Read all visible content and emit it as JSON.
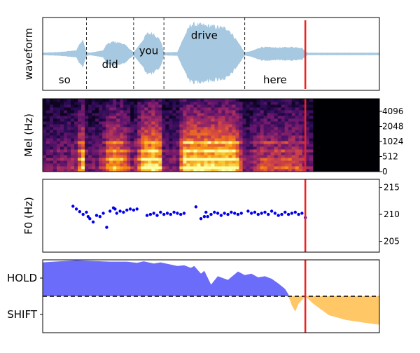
{
  "chart_data": [
    {
      "panel": "waveform",
      "type": "area",
      "ylabel": "waveform",
      "series_color": "#a6c8e0",
      "word_boundary_style": "dashed",
      "words": [
        {
          "text": "so",
          "start": 0.0,
          "end": 0.13,
          "label_y": -0.72
        },
        {
          "text": "did",
          "start": 0.13,
          "end": 0.27,
          "label_y": -0.3
        },
        {
          "text": "you",
          "start": 0.27,
          "end": 0.36,
          "label_y": 0.08
        },
        {
          "text": "drive",
          "start": 0.36,
          "end": 0.6,
          "label_y": 0.5
        },
        {
          "text": "here",
          "start": 0.6,
          "end": 0.78,
          "label_y": -0.72
        }
      ],
      "envelope": {
        "x": [
          0.0,
          0.05,
          0.1,
          0.11,
          0.12,
          0.13,
          0.14,
          0.18,
          0.19,
          0.21,
          0.24,
          0.27,
          0.29,
          0.31,
          0.33,
          0.35,
          0.36,
          0.4,
          0.42,
          0.44,
          0.5,
          0.55,
          0.58,
          0.6,
          0.62,
          0.65,
          0.7,
          0.74,
          0.77,
          0.78,
          0.79,
          1.0
        ],
        "amp": [
          0.03,
          0.05,
          0.1,
          0.3,
          0.4,
          0.06,
          0.03,
          0.1,
          0.28,
          0.36,
          0.3,
          0.04,
          0.3,
          0.6,
          0.6,
          0.4,
          0.04,
          0.05,
          0.5,
          0.88,
          0.82,
          0.75,
          0.35,
          0.04,
          0.08,
          0.2,
          0.18,
          0.2,
          0.18,
          0.06,
          0.03,
          0.03
        ]
      },
      "cursor": 0.78,
      "cursor_color": "#ee2222"
    },
    {
      "panel": "mel",
      "type": "heatmap",
      "ylabel": "Mel (Hz)",
      "colormap": "magma",
      "y_ticks": [
        "0",
        "512",
        "1024",
        "2048",
        "4096"
      ],
      "y_tick_side": "right",
      "active_until": 0.8,
      "cursor": 0.78,
      "cursor_color": "#ee2222"
    },
    {
      "panel": "f0",
      "type": "scatter",
      "ylabel": "F0 (Hz)",
      "ylim": [
        203,
        216.5
      ],
      "y_ticks": [
        205,
        210,
        215
      ],
      "y_tick_side": "right",
      "point_color": "#0000ee",
      "points": [
        [
          0.09,
          211.5
        ],
        [
          0.1,
          211.0
        ],
        [
          0.11,
          210.5
        ],
        [
          0.12,
          210.0
        ],
        [
          0.13,
          210.4
        ],
        [
          0.135,
          209.6
        ],
        [
          0.14,
          209.2
        ],
        [
          0.15,
          208.6
        ],
        [
          0.16,
          209.8
        ],
        [
          0.17,
          209.6
        ],
        [
          0.18,
          210.2
        ],
        [
          0.19,
          207.6
        ],
        [
          0.2,
          210.6
        ],
        [
          0.21,
          211.2
        ],
        [
          0.215,
          211.0
        ],
        [
          0.22,
          210.2
        ],
        [
          0.23,
          210.6
        ],
        [
          0.24,
          210.4
        ],
        [
          0.25,
          210.8
        ],
        [
          0.26,
          211.0
        ],
        [
          0.27,
          210.8
        ],
        [
          0.28,
          211.0
        ],
        [
          0.31,
          209.8
        ],
        [
          0.32,
          210.0
        ],
        [
          0.33,
          210.2
        ],
        [
          0.34,
          209.8
        ],
        [
          0.35,
          210.4
        ],
        [
          0.36,
          210.0
        ],
        [
          0.37,
          210.2
        ],
        [
          0.38,
          210.0
        ],
        [
          0.39,
          210.4
        ],
        [
          0.4,
          210.2
        ],
        [
          0.41,
          210.0
        ],
        [
          0.42,
          210.2
        ],
        [
          0.455,
          211.4
        ],
        [
          0.47,
          209.2
        ],
        [
          0.48,
          209.6
        ],
        [
          0.485,
          210.4
        ],
        [
          0.49,
          209.6
        ],
        [
          0.5,
          210.0
        ],
        [
          0.51,
          210.4
        ],
        [
          0.52,
          210.2
        ],
        [
          0.53,
          209.8
        ],
        [
          0.54,
          210.2
        ],
        [
          0.55,
          210.0
        ],
        [
          0.56,
          210.4
        ],
        [
          0.57,
          210.2
        ],
        [
          0.58,
          210.0
        ],
        [
          0.59,
          210.2
        ],
        [
          0.61,
          210.6
        ],
        [
          0.62,
          210.2
        ],
        [
          0.63,
          210.4
        ],
        [
          0.64,
          210.0
        ],
        [
          0.65,
          210.2
        ],
        [
          0.66,
          210.4
        ],
        [
          0.67,
          210.0
        ],
        [
          0.68,
          210.6
        ],
        [
          0.69,
          210.2
        ],
        [
          0.7,
          209.8
        ],
        [
          0.71,
          210.0
        ],
        [
          0.72,
          210.4
        ],
        [
          0.73,
          210.0
        ],
        [
          0.74,
          210.2
        ],
        [
          0.75,
          210.4
        ],
        [
          0.76,
          210.0
        ],
        [
          0.77,
          210.2
        ],
        [
          0.78,
          209.4
        ]
      ],
      "cursor": 0.78,
      "cursor_color": "#ee2222"
    },
    {
      "panel": "turn-taking",
      "type": "area",
      "categories": [
        "HOLD",
        "SHIFT"
      ],
      "ylim": [
        -1.0,
        1.0
      ],
      "threshold": 0.0,
      "threshold_style": "dashed",
      "series": [
        {
          "color": "#6c6cfb",
          "x": [
            0.0,
            0.05,
            0.1,
            0.15,
            0.2,
            0.25,
            0.28,
            0.3,
            0.33,
            0.35,
            0.4,
            0.42,
            0.44,
            0.45,
            0.47,
            0.48,
            0.5,
            0.52,
            0.55,
            0.58,
            0.6,
            0.62,
            0.64,
            0.66,
            0.68,
            0.7,
            0.72,
            0.73
          ],
          "values": [
            0.93,
            0.96,
            0.99,
            0.97,
            0.95,
            0.95,
            0.92,
            0.96,
            0.9,
            0.93,
            0.83,
            0.85,
            0.78,
            0.83,
            0.62,
            0.7,
            0.32,
            0.55,
            0.45,
            0.68,
            0.58,
            0.62,
            0.52,
            0.55,
            0.48,
            0.35,
            0.2,
            0.05
          ]
        },
        {
          "color": "#ffc766",
          "x": [
            0.73,
            0.74,
            0.75,
            0.76,
            0.77,
            0.78,
            0.79,
            0.8,
            0.85,
            0.9,
            0.95,
            1.0
          ],
          "values": [
            0.0,
            -0.25,
            -0.42,
            -0.2,
            -0.1,
            0.0,
            -0.08,
            -0.18,
            -0.52,
            -0.65,
            -0.72,
            -0.78
          ]
        }
      ],
      "cursor": 0.78,
      "cursor_color": "#ee2222"
    }
  ]
}
